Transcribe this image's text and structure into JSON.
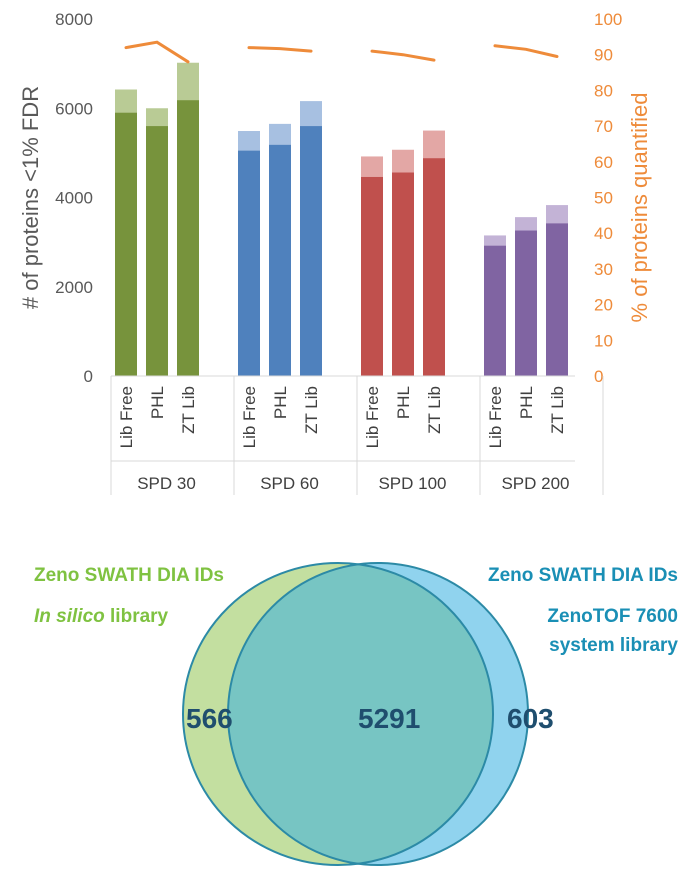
{
  "chart_data": {
    "type": "bar",
    "y_left": {
      "label": "# of proteins <1% FDR",
      "lim": [
        0,
        8000
      ],
      "ticks": [
        0,
        2000,
        4000,
        6000,
        8000
      ]
    },
    "y_right": {
      "label": "% of proteins quantified",
      "lim": [
        0,
        100
      ],
      "ticks": [
        0,
        10,
        20,
        30,
        40,
        50,
        60,
        70,
        80,
        90,
        100
      ],
      "color": "#ee8b3a"
    },
    "grid": false,
    "groups": [
      {
        "name": "SPD 30",
        "color": "#77933c",
        "light": "#b9cb95",
        "categories": [
          "Lib Free",
          "PHL",
          "ZT Lib"
        ],
        "quantified": [
          5900,
          5600,
          6180
        ],
        "identified": [
          6420,
          6000,
          7020
        ],
        "pct_quantified": [
          92,
          93.5,
          88
        ]
      },
      {
        "name": "SPD 60",
        "color": "#4f81bd",
        "light": "#a7c0e1",
        "categories": [
          "Lib Free",
          "PHL",
          "ZT Lib"
        ],
        "quantified": [
          5050,
          5180,
          5600
        ],
        "identified": [
          5490,
          5650,
          6160
        ],
        "pct_quantified": [
          92,
          91.7,
          91
        ]
      },
      {
        "name": "SPD 100",
        "color": "#c0504d",
        "light": "#e3a7a5",
        "categories": [
          "Lib Free",
          "PHL",
          "ZT Lib"
        ],
        "quantified": [
          4460,
          4560,
          4880
        ],
        "identified": [
          4920,
          5070,
          5500
        ],
        "pct_quantified": [
          91,
          90,
          88.5
        ]
      },
      {
        "name": "SPD 200",
        "color": "#8064a2",
        "light": "#c3b3d6",
        "categories": [
          "Lib Free",
          "PHL",
          "ZT Lib"
        ],
        "quantified": [
          2920,
          3260,
          3420
        ],
        "identified": [
          3150,
          3560,
          3830
        ],
        "pct_quantified": [
          92.5,
          91.5,
          89.5
        ]
      }
    ],
    "line_color": "#ee8b3a"
  },
  "venn": {
    "left_title": "Zeno SWATH DIA IDs",
    "left_sub_italic": "In silico",
    "left_sub_rest": " library",
    "left_color": "#7fc241",
    "right_title": "Zeno SWATH DIA IDs",
    "right_line2": "ZenoTOF 7600",
    "right_line3": "system library",
    "right_color": "#1a8fb5",
    "left_only": "566",
    "overlap": "5291",
    "right_only": "603",
    "left_fill": "#c3dfa0",
    "right_fill": "#90d3ee",
    "overlap_fill": "#77c5c3",
    "outline": "#2c8aa6"
  }
}
